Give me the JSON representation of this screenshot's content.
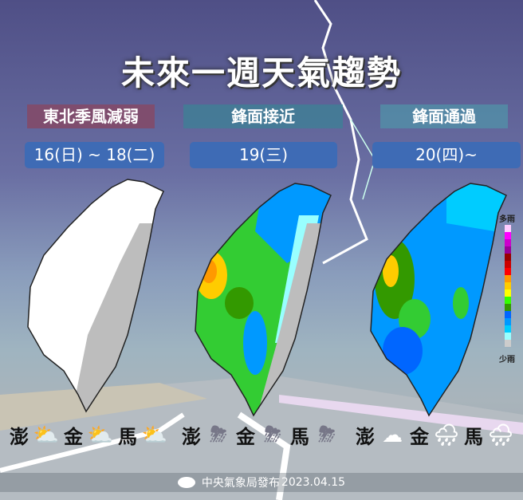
{
  "title": "未來一週天氣趨勢",
  "panels": [
    {
      "phase": "東北季風減弱",
      "phase_color": "#7f4d6e",
      "date": "16(日) ~ 18(二)",
      "islands": [
        {
          "name": "澎",
          "icon": "sun-behind-cloud-icon"
        },
        {
          "name": "金",
          "icon": "sun-behind-cloud-icon"
        },
        {
          "name": "馬",
          "icon": "sun-behind-cloud-icon"
        }
      ]
    },
    {
      "phase": "鋒面接近",
      "phase_color": "#4a7fa0",
      "date": "19(三)",
      "islands": [
        {
          "name": "澎",
          "icon": "thunderstorm-icon"
        },
        {
          "name": "金",
          "icon": "thunderstorm-icon"
        },
        {
          "name": "馬",
          "icon": "thunderstorm-icon"
        }
      ]
    },
    {
      "phase": "鋒面通過",
      "phase_color": "#5a8fb0",
      "date": "20(四)~",
      "islands": [
        {
          "name": "澎",
          "icon": "cloudy-icon"
        },
        {
          "name": "金",
          "icon": "cloudy-rain-icon"
        },
        {
          "name": "馬",
          "icon": "cloudy-rain-icon"
        }
      ]
    }
  ],
  "legend": {
    "top_label": "多雨",
    "bottom_label": "少雨",
    "colors": [
      "#ffccff",
      "#ff00ff",
      "#cc00cc",
      "#990099",
      "#990000",
      "#cc0000",
      "#ff0000",
      "#ff9900",
      "#ffcc00",
      "#ffff00",
      "#33ff00",
      "#339900",
      "#0066ff",
      "#0099ff",
      "#00ccff",
      "#99ffff",
      "#cccccc"
    ]
  },
  "footer": {
    "agency": "中央氣象局發布",
    "date": "2023.04.15"
  }
}
